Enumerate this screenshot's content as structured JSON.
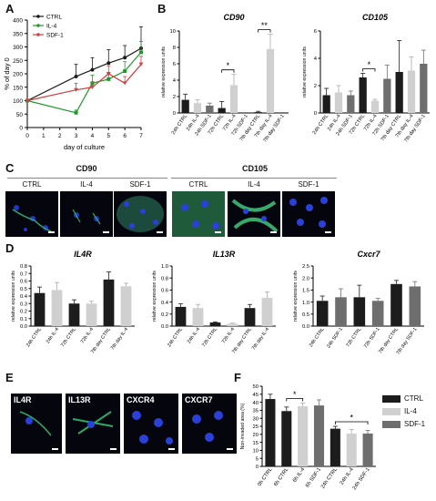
{
  "panels": {
    "A": "A",
    "B": "B",
    "C": "C",
    "D": "D",
    "E": "E",
    "F": "F"
  },
  "colors": {
    "ctrl": "#1a1a1a",
    "il4": "#1e9a2c",
    "sdf1": "#d43d3d",
    "dark": "#1c1c1c",
    "light": "#d0d0d0",
    "mid": "#6e6e6e"
  },
  "chart_data": [
    {
      "id": "A",
      "type": "line",
      "xlabel": "day of culture",
      "ylabel": "% of day 0",
      "xlim": [
        0,
        7
      ],
      "ylim": [
        0,
        400
      ],
      "xticks": [
        "0",
        "1",
        "2",
        "3",
        "4",
        "5",
        "6",
        "7"
      ],
      "yticks": [
        "0",
        "50",
        "100",
        "150",
        "200",
        "250",
        "300",
        "350",
        "400"
      ],
      "legend": [
        "CTRL",
        "IL-4",
        "SDF-1"
      ],
      "series": [
        {
          "name": "CTRL",
          "x": [
            0,
            3,
            4,
            5,
            6,
            7
          ],
          "y": [
            100,
            190,
            215,
            240,
            260,
            295
          ],
          "err": [
            0,
            45,
            45,
            50,
            45,
            80
          ]
        },
        {
          "name": "IL-4",
          "x": [
            0,
            3,
            4,
            5,
            6,
            7
          ],
          "y": [
            100,
            55,
            165,
            180,
            210,
            280
          ],
          "err": [
            0,
            10,
            30,
            20,
            35,
            40
          ]
        },
        {
          "name": "SDF-1",
          "x": [
            0,
            3,
            4,
            5,
            6,
            7
          ],
          "y": [
            100,
            140,
            150,
            200,
            165,
            235
          ],
          "err": [
            0,
            25,
            20,
            30,
            25,
            30
          ]
        }
      ]
    },
    {
      "id": "B1",
      "type": "bar",
      "title": "CD90",
      "ylabel": "relative expression units",
      "ylim": [
        0,
        10
      ],
      "yticks": [
        "0",
        "2",
        "4",
        "6",
        "8",
        "10"
      ],
      "categories": [
        "24h CTRL",
        "24h IL-4",
        "24h SDF-1",
        "72h CTRL",
        "72h IL-4",
        "72h SDF-1",
        "7th day CTRL",
        "7th day IL-4",
        "7th day SDF-1"
      ],
      "values": [
        1.6,
        1.2,
        0.9,
        0.6,
        3.4,
        0.0,
        0.1,
        7.8,
        0.0
      ],
      "err": [
        0.7,
        0.4,
        0.3,
        0.8,
        1.3,
        0.0,
        0.1,
        1.8,
        0.0
      ],
      "fill": [
        "dark",
        "light",
        "mid",
        "dark",
        "light",
        "mid",
        "dark",
        "light",
        "mid"
      ],
      "annotations": [
        {
          "text": "*",
          "from": 3,
          "to": 4
        },
        {
          "text": "**",
          "from": 6,
          "to": 7
        }
      ]
    },
    {
      "id": "B2",
      "type": "bar",
      "title": "CD105",
      "ylabel": "relative expression units",
      "ylim": [
        0,
        6
      ],
      "yticks": [
        "0",
        "2",
        "4",
        "6"
      ],
      "categories": [
        "24h CTRL",
        "24h IL-4",
        "24h SDF-1",
        "72h CTRL",
        "72h IL-4",
        "72h SDF-1",
        "7th day CTRL",
        "7th day IL-4",
        "7th day SDF-1"
      ],
      "values": [
        1.3,
        1.5,
        1.3,
        2.6,
        0.9,
        2.5,
        3.0,
        3.1,
        3.6
      ],
      "err": [
        0.5,
        0.5,
        0.3,
        0.3,
        0.1,
        1.0,
        2.3,
        1.0,
        1.0
      ],
      "fill": [
        "dark",
        "light",
        "mid",
        "dark",
        "light",
        "mid",
        "dark",
        "light",
        "mid"
      ],
      "annotations": [
        {
          "text": "*",
          "from": 3,
          "to": 4
        }
      ]
    },
    {
      "id": "D1",
      "type": "bar",
      "title": "IL4R",
      "ylabel": "relative expression units",
      "ylim": [
        0,
        0.8
      ],
      "yticks": [
        "0.0",
        "0.1",
        "0.2",
        "0.3",
        "0.4",
        "0.5",
        "0.6",
        "0.7",
        "0.8"
      ],
      "categories": [
        "24h CTRL",
        "24h IL-4",
        "72h CTRL",
        "72h IL-4",
        "7th day CTRL",
        "7th day IL-4"
      ],
      "values": [
        0.44,
        0.48,
        0.3,
        0.3,
        0.62,
        0.53
      ],
      "err": [
        0.08,
        0.1,
        0.05,
        0.03,
        0.1,
        0.04
      ],
      "fill": [
        "dark",
        "light",
        "dark",
        "light",
        "dark",
        "light"
      ]
    },
    {
      "id": "D2",
      "type": "bar",
      "title": "IL13R",
      "ylabel": "relative expression units",
      "ylim": [
        0,
        1.0
      ],
      "yticks": [
        "0.0",
        "0.2",
        "0.4",
        "0.6",
        "0.8",
        "1.0"
      ],
      "categories": [
        "24h CTRL",
        "24h IL-4",
        "72h CTRL",
        "72h IL-4",
        "7th day CTRL",
        "7th day IL-4"
      ],
      "values": [
        0.32,
        0.3,
        0.06,
        0.04,
        0.3,
        0.47
      ],
      "err": [
        0.05,
        0.06,
        0.01,
        0.01,
        0.06,
        0.1
      ],
      "fill": [
        "dark",
        "light",
        "dark",
        "light",
        "dark",
        "light"
      ]
    },
    {
      "id": "D3",
      "type": "bar",
      "title": "Cxcr7",
      "ylabel": "relative expression units",
      "ylim": [
        0,
        2.5
      ],
      "yticks": [
        "0.0",
        "0.5",
        "1.0",
        "1.5",
        "2.0",
        "2.5"
      ],
      "categories": [
        "24h CTRL",
        "24h SDF-1",
        "72h CTRL",
        "72h SDF-1",
        "7th day CTRL",
        "7th day SDF-1"
      ],
      "values": [
        1.05,
        1.2,
        1.2,
        1.05,
        1.75,
        1.65
      ],
      "err": [
        0.2,
        0.35,
        0.5,
        0.1,
        0.15,
        0.2
      ],
      "fill": [
        "dark",
        "mid",
        "dark",
        "mid",
        "dark",
        "mid"
      ]
    },
    {
      "id": "F",
      "type": "bar",
      "ylabel": "Non-invaded area (%)",
      "ylim": [
        0,
        50
      ],
      "yticks": [
        "0",
        "5",
        "10",
        "15",
        "20",
        "25",
        "30",
        "35",
        "40",
        "45",
        "50"
      ],
      "categories": [
        "0h CTRL",
        "6h CTRL",
        "6h IL-4",
        "6h SDF-1",
        "24h CTRL",
        "24h IL-4",
        "24h SDF-1"
      ],
      "values": [
        42,
        34.5,
        37.5,
        38,
        23.5,
        20.5,
        20.5
      ],
      "err": [
        3,
        2.5,
        2,
        3.5,
        1.5,
        2.5,
        2
      ],
      "fill": [
        "dark",
        "dark",
        "light",
        "mid",
        "dark",
        "light",
        "mid"
      ],
      "legend": [
        "CTRL",
        "IL-4",
        "SDF-1"
      ],
      "annotations": [
        {
          "text": "*",
          "from": 1,
          "to": 2
        },
        {
          "text": "*",
          "from": 4,
          "to": 6
        }
      ]
    }
  ],
  "C": {
    "groups": [
      {
        "title": "CD90",
        "labels": [
          "CTRL",
          "IL-4",
          "SDF-1"
        ]
      },
      {
        "title": "CD105",
        "labels": [
          "CTRL",
          "IL-4",
          "SDF-1"
        ]
      }
    ]
  },
  "E": {
    "labels": [
      "IL4R",
      "IL13R",
      "CXCR4",
      "CXCR7"
    ]
  },
  "F_legend": {
    "ctrl": "CTRL",
    "il4": "IL-4",
    "sdf1": "SDF-1"
  }
}
